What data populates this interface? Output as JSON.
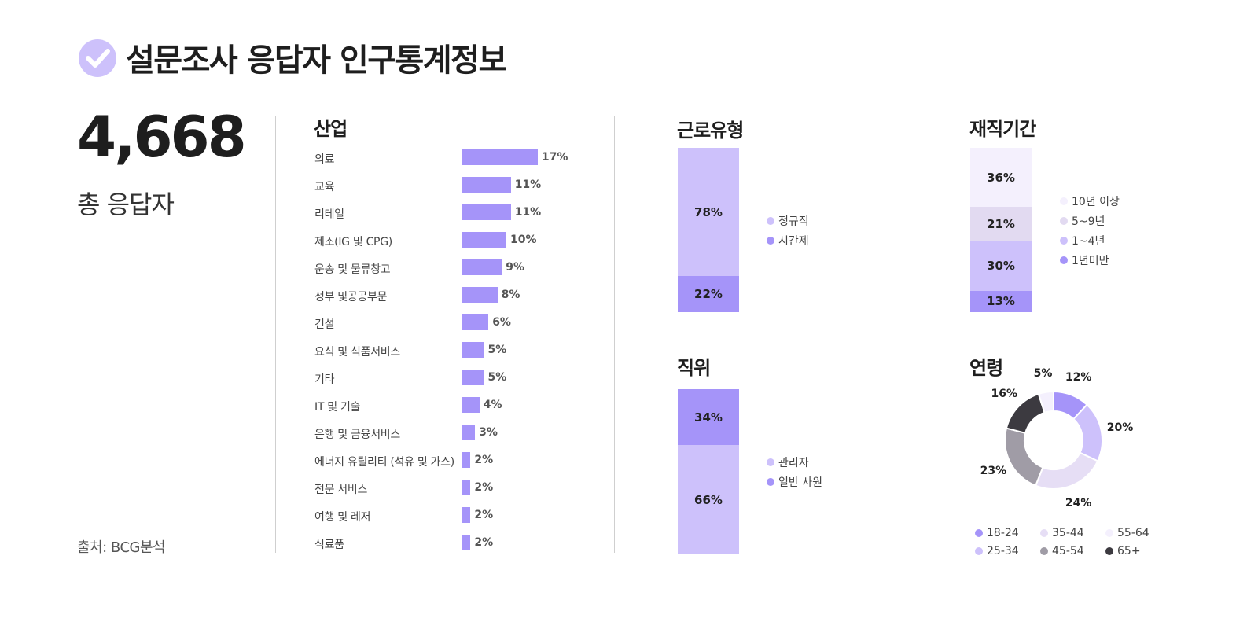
{
  "page": {
    "title": "설문조사 응답자 인구통계정보",
    "total": "4,668",
    "total_label": "총 응답자",
    "source": "출처: BCG분석",
    "accent": "#a594f9"
  },
  "chart_data": [
    {
      "type": "bar",
      "title": "산업",
      "categories": [
        "의료",
        "교육",
        "리테일",
        "제조(IG 및 CPG)",
        "운송 및 물류창고",
        "정부 및공공부문",
        "건설",
        "요식 및 식품서비스",
        "기타",
        "IT 및 기술",
        "은행 및 금융서비스",
        "에너지 유틸리티 (석유 및 가스)",
        "전문 서비스",
        "여행 및 레저",
        "식료품"
      ],
      "values": [
        17,
        11,
        11,
        10,
        9,
        8,
        6,
        5,
        5,
        4,
        3,
        2,
        2,
        2,
        2
      ],
      "value_labels": [
        "17%",
        "11%",
        "11%",
        "10%",
        "9%",
        "8%",
        "6%",
        "5%",
        "5%",
        "4%",
        "3%",
        "2%",
        "2%",
        "2%",
        "2%"
      ],
      "color": "#a594f9"
    },
    {
      "type": "bar",
      "subtype": "stacked",
      "title": "근로유형",
      "series": [
        {
          "name": "정규직",
          "value": 78,
          "label": "78%",
          "color": "#cdc1fb"
        },
        {
          "name": "시간제",
          "value": 22,
          "label": "22%",
          "color": "#a594f9"
        }
      ]
    },
    {
      "type": "bar",
      "subtype": "stacked",
      "title": "직위",
      "series": [
        {
          "name": "관리자",
          "value": 34,
          "label": "34%",
          "color": "#a594f9"
        },
        {
          "name": "일반 사원",
          "value": 66,
          "label": "66%",
          "color": "#cdc1fb"
        }
      ],
      "legend": [
        {
          "name": "관리자",
          "color": "#cdc1fb"
        },
        {
          "name": "일반 사원",
          "color": "#a594f9"
        }
      ]
    },
    {
      "type": "bar",
      "subtype": "stacked",
      "title": "재직기간",
      "series": [
        {
          "name": "10년 이상",
          "value": 36,
          "label": "36%",
          "color": "#f4f0fd"
        },
        {
          "name": "5~9년",
          "value": 21,
          "label": "21%",
          "color": "#e2daf1"
        },
        {
          "name": "1~4년",
          "value": 30,
          "label": "30%",
          "color": "#cdc1fb"
        },
        {
          "name": "1년미만",
          "value": 13,
          "label": "13%",
          "color": "#a594f9"
        }
      ]
    },
    {
      "type": "pie",
      "subtype": "donut",
      "title": "연령",
      "slices": [
        {
          "name": "18-24",
          "value": 12,
          "label": "12%",
          "color": "#a594f9"
        },
        {
          "name": "25-34",
          "value": 20,
          "label": "20%",
          "color": "#cdc1fb"
        },
        {
          "name": "35-44",
          "value": 24,
          "label": "24%",
          "color": "#e6def5"
        },
        {
          "name": "45-54",
          "value": 23,
          "label": "23%",
          "color": "#a09ca6"
        },
        {
          "name": "65+",
          "value": 16,
          "label": "16%",
          "color": "#3c3a40"
        },
        {
          "name": "55-64",
          "value": 5,
          "label": "5%",
          "color": "#f4f0fd"
        }
      ],
      "legend": [
        "18-24",
        "35-44",
        "55-64",
        "25-34",
        "45-54",
        "65+"
      ]
    }
  ]
}
